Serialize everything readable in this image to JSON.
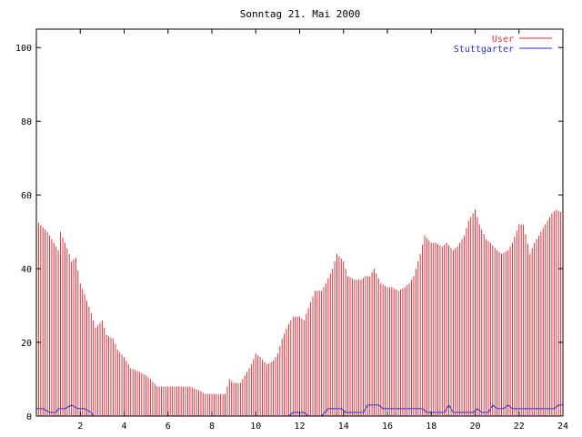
{
  "chart_data": {
    "type": "bar",
    "title": "Sonntag 21. Mai 2000",
    "xlabel": "",
    "ylabel": "",
    "xlim": [
      0,
      24
    ],
    "ylim": [
      0,
      105
    ],
    "x_ticks": [
      "2",
      "4",
      "6",
      "8",
      "10",
      "12",
      "14",
      "16",
      "18",
      "20",
      "22",
      "24"
    ],
    "y_ticks": [
      "0",
      "20",
      "40",
      "60",
      "80",
      "100"
    ],
    "legend_position": "top-right",
    "grid": false,
    "series": [
      {
        "name": "User",
        "style": "impulses",
        "color": "#e0303a",
        "points": [
          [
            0.0,
            53
          ],
          [
            0.5,
            50
          ],
          [
            1.0,
            45
          ],
          [
            1.1,
            50
          ],
          [
            1.5,
            44
          ],
          [
            1.6,
            42
          ],
          [
            1.8,
            43
          ],
          [
            2.0,
            36
          ],
          [
            2.2,
            33
          ],
          [
            2.5,
            28
          ],
          [
            2.7,
            24
          ],
          [
            3.0,
            26
          ],
          [
            3.2,
            22
          ],
          [
            3.5,
            21
          ],
          [
            3.7,
            18
          ],
          [
            4.0,
            16
          ],
          [
            4.3,
            13
          ],
          [
            4.7,
            12
          ],
          [
            5.0,
            11
          ],
          [
            5.2,
            10
          ],
          [
            5.5,
            8
          ],
          [
            6.0,
            8
          ],
          [
            6.5,
            8
          ],
          [
            7.0,
            8
          ],
          [
            7.4,
            7
          ],
          [
            7.7,
            6
          ],
          [
            8.0,
            6
          ],
          [
            8.3,
            6
          ],
          [
            8.6,
            6
          ],
          [
            8.8,
            10
          ],
          [
            9.0,
            9
          ],
          [
            9.3,
            9
          ],
          [
            9.5,
            11
          ],
          [
            9.8,
            14
          ],
          [
            10.0,
            17
          ],
          [
            10.2,
            16
          ],
          [
            10.5,
            14
          ],
          [
            10.8,
            15
          ],
          [
            11.0,
            17
          ],
          [
            11.2,
            21
          ],
          [
            11.5,
            25
          ],
          [
            11.7,
            27
          ],
          [
            12.0,
            27
          ],
          [
            12.2,
            26
          ],
          [
            12.5,
            31
          ],
          [
            12.7,
            34
          ],
          [
            13.0,
            34
          ],
          [
            13.2,
            36
          ],
          [
            13.5,
            40
          ],
          [
            13.7,
            44
          ],
          [
            14.0,
            42
          ],
          [
            14.2,
            38
          ],
          [
            14.5,
            37
          ],
          [
            14.8,
            37
          ],
          [
            15.0,
            38
          ],
          [
            15.2,
            38
          ],
          [
            15.4,
            40
          ],
          [
            15.7,
            36
          ],
          [
            16.0,
            35
          ],
          [
            16.2,
            35
          ],
          [
            16.5,
            34
          ],
          [
            16.8,
            35
          ],
          [
            17.0,
            36
          ],
          [
            17.2,
            38
          ],
          [
            17.5,
            44
          ],
          [
            17.7,
            49
          ],
          [
            18.0,
            47
          ],
          [
            18.2,
            47
          ],
          [
            18.5,
            46
          ],
          [
            18.7,
            47
          ],
          [
            19.0,
            45
          ],
          [
            19.2,
            46
          ],
          [
            19.5,
            49
          ],
          [
            19.7,
            53
          ],
          [
            20.0,
            56
          ],
          [
            20.2,
            52
          ],
          [
            20.5,
            48
          ],
          [
            20.7,
            47
          ],
          [
            21.0,
            45
          ],
          [
            21.2,
            44
          ],
          [
            21.5,
            45
          ],
          [
            21.7,
            47
          ],
          [
            22.0,
            52
          ],
          [
            22.2,
            52
          ],
          [
            22.5,
            44
          ],
          [
            22.7,
            47
          ],
          [
            23.0,
            50
          ],
          [
            23.2,
            52
          ],
          [
            23.5,
            55
          ],
          [
            23.7,
            56
          ],
          [
            24.0,
            55
          ]
        ]
      },
      {
        "name": "Stuttgarter",
        "style": "line",
        "color": "#2b2bd0",
        "points": [
          [
            0.0,
            2
          ],
          [
            0.3,
            2
          ],
          [
            0.6,
            1
          ],
          [
            0.9,
            1
          ],
          [
            1.0,
            2
          ],
          [
            1.3,
            2
          ],
          [
            1.6,
            3
          ],
          [
            1.9,
            2
          ],
          [
            2.2,
            2
          ],
          [
            2.5,
            1
          ],
          [
            2.6,
            0
          ],
          [
            8.9,
            0
          ],
          [
            11.5,
            0
          ],
          [
            11.7,
            1
          ],
          [
            12.2,
            1
          ],
          [
            12.4,
            0
          ],
          [
            13.0,
            0
          ],
          [
            13.3,
            2
          ],
          [
            13.9,
            2
          ],
          [
            14.1,
            1
          ],
          [
            14.9,
            1
          ],
          [
            15.1,
            3
          ],
          [
            15.6,
            3
          ],
          [
            15.8,
            2
          ],
          [
            17.6,
            2
          ],
          [
            17.8,
            1
          ],
          [
            18.6,
            1
          ],
          [
            18.8,
            3
          ],
          [
            19.0,
            1
          ],
          [
            19.9,
            1
          ],
          [
            20.1,
            2
          ],
          [
            20.3,
            1
          ],
          [
            20.6,
            1
          ],
          [
            20.8,
            3
          ],
          [
            21.0,
            2
          ],
          [
            21.3,
            2
          ],
          [
            21.5,
            3
          ],
          [
            21.7,
            2
          ],
          [
            23.4,
            2
          ],
          [
            23.6,
            2
          ],
          [
            23.8,
            3
          ],
          [
            24.0,
            3
          ]
        ]
      }
    ]
  }
}
